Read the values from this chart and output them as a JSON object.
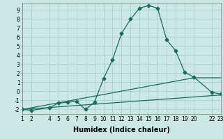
{
  "xlabel": "Humidex (Indice chaleur)",
  "background_color": "#cce8e4",
  "grid_color": "#aacfca",
  "line_color": "#1a6b5a",
  "xlim": [
    1,
    23
  ],
  "ylim": [
    -2.5,
    9.8
  ],
  "xticks": [
    1,
    2,
    4,
    5,
    6,
    7,
    8,
    9,
    10,
    11,
    12,
    13,
    14,
    15,
    16,
    17,
    18,
    19,
    20,
    22,
    23
  ],
  "yticks": [
    -2,
    -1,
    0,
    1,
    2,
    3,
    4,
    5,
    6,
    7,
    8,
    9
  ],
  "series1_x": [
    1,
    2,
    4,
    5,
    6,
    7,
    8,
    9,
    10,
    11,
    12,
    13,
    14,
    15,
    16,
    17,
    18,
    19,
    20,
    22,
    23
  ],
  "series1_y": [
    -2.0,
    -2.1,
    -1.8,
    -1.3,
    -1.2,
    -1.1,
    -2.0,
    -1.2,
    1.4,
    3.5,
    6.4,
    8.0,
    9.2,
    9.5,
    9.2,
    5.7,
    4.5,
    2.1,
    1.6,
    -0.1,
    -0.3
  ],
  "series2_x": [
    1,
    20,
    22,
    23
  ],
  "series2_y": [
    -2.0,
    1.5,
    1.5,
    1.5
  ],
  "series3_x": [
    1,
    23
  ],
  "series3_y": [
    -2.0,
    -0.4
  ],
  "line_width": 0.9,
  "marker_size": 2.5,
  "font_size_label": 7,
  "font_size_tick": 5.5
}
